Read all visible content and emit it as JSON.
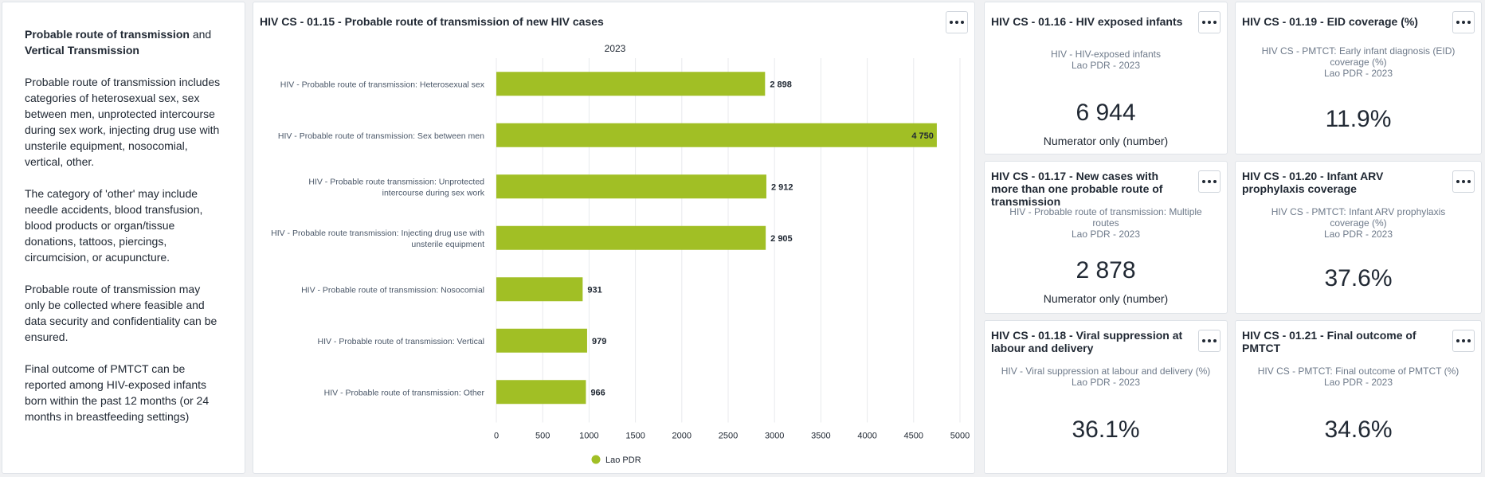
{
  "info": {
    "title_bold1": "Probable route of transmission",
    "title_mid": " and ",
    "title_bold2": "Vertical Transmission",
    "p1": "Probable route of transmission includes categories of heterosexual sex, sex between men, unprotected intercourse during sex work, injecting drug use with unsterile equipment, nosocomial, vertical, other.",
    "p2": "The category of 'other' may include needle accidents, blood transfusion, blood products or organ/tissue donations, tattoos, piercings, circumcision, or acupuncture.",
    "p3": "Probable route of transmission may only be collected where feasible and data security and confidentiality can be ensured.",
    "p4": "Final outcome of PMTCT can be reported among HIV-exposed infants born within the past 12 months (or 24 months in breastfeeding settings)"
  },
  "chart_card": {
    "title": "HIV CS - 01.15 - Probable route of transmission of new HIV cases"
  },
  "chart_data": {
    "type": "bar",
    "orientation": "horizontal",
    "subtitle": "2023",
    "categories": [
      [
        "HIV - Probable route of transmission: Heterosexual sex"
      ],
      [
        "HIV - Probable route of transmission: Sex between men"
      ],
      [
        "HIV - Probable route transmission: Unprotected",
        "intercourse during sex work"
      ],
      [
        "HIV - Probable route transmission: Injecting drug use with",
        "unsterile equipment"
      ],
      [
        "HIV - Probable route of transmission: Nosocomial"
      ],
      [
        "HIV - Probable route of transmission: Vertical"
      ],
      [
        "HIV - Probable route of transmission: Other"
      ]
    ],
    "values": [
      2898,
      4750,
      2912,
      2905,
      931,
      979,
      966
    ],
    "value_labels": [
      "2 898",
      "4 750",
      "2 912",
      "2 905",
      "931",
      "979",
      "966"
    ],
    "xlim": [
      0,
      5000
    ],
    "ticks": [
      "0",
      "500",
      "1000",
      "1500",
      "2000",
      "2500",
      "3000",
      "3500",
      "4000",
      "4500",
      "5000"
    ],
    "series": [
      {
        "name": "Lao PDR",
        "color": "#a1bf25"
      }
    ],
    "legend_position": "bottom",
    "grid": true
  },
  "single_values": [
    {
      "title": "HIV CS - 01.16 - HIV exposed infants",
      "sub1": "HIV - HIV-exposed infants",
      "sub2": "Lao PDR - 2023",
      "value": "6 944",
      "note": "Numerator only (number)"
    },
    {
      "title": "HIV CS - 01.19 - EID coverage (%)",
      "sub1": "HIV CS - PMTCT: Early infant diagnosis (EID) coverage (%)",
      "sub2": "Lao PDR - 2023",
      "value": "11.9%",
      "note": ""
    },
    {
      "title": "HIV CS - 01.17 - New cases with more than one probable route of transmission",
      "sub1": "HIV - Probable route of transmission: Multiple routes",
      "sub2": "Lao PDR - 2023",
      "value": "2 878",
      "note": "Numerator only (number)"
    },
    {
      "title": "HIV CS - 01.20 - Infant ARV prophylaxis coverage",
      "sub1": "HIV CS - PMTCT: Infant ARV prophylaxis coverage (%)",
      "sub2": "Lao PDR - 2023",
      "value": "37.6%",
      "note": ""
    },
    {
      "title": "HIV CS - 01.18 - Viral suppression at labour and delivery",
      "sub1": "HIV - Viral suppression at labour and delivery (%)",
      "sub2": "Lao PDR - 2023",
      "value": "36.1%",
      "note": ""
    },
    {
      "title": "HIV CS - 01.21 - Final outcome of PMTCT",
      "sub1": "HIV CS - PMTCT: Final outcome of PMTCT (%)",
      "sub2": "Lao PDR - 2023",
      "value": "34.6%",
      "note": ""
    }
  ],
  "colors": {
    "bar": "#a1bf25",
    "grid": "#e8eaed",
    "text": "#212934",
    "muted": "#6e7a8a"
  }
}
